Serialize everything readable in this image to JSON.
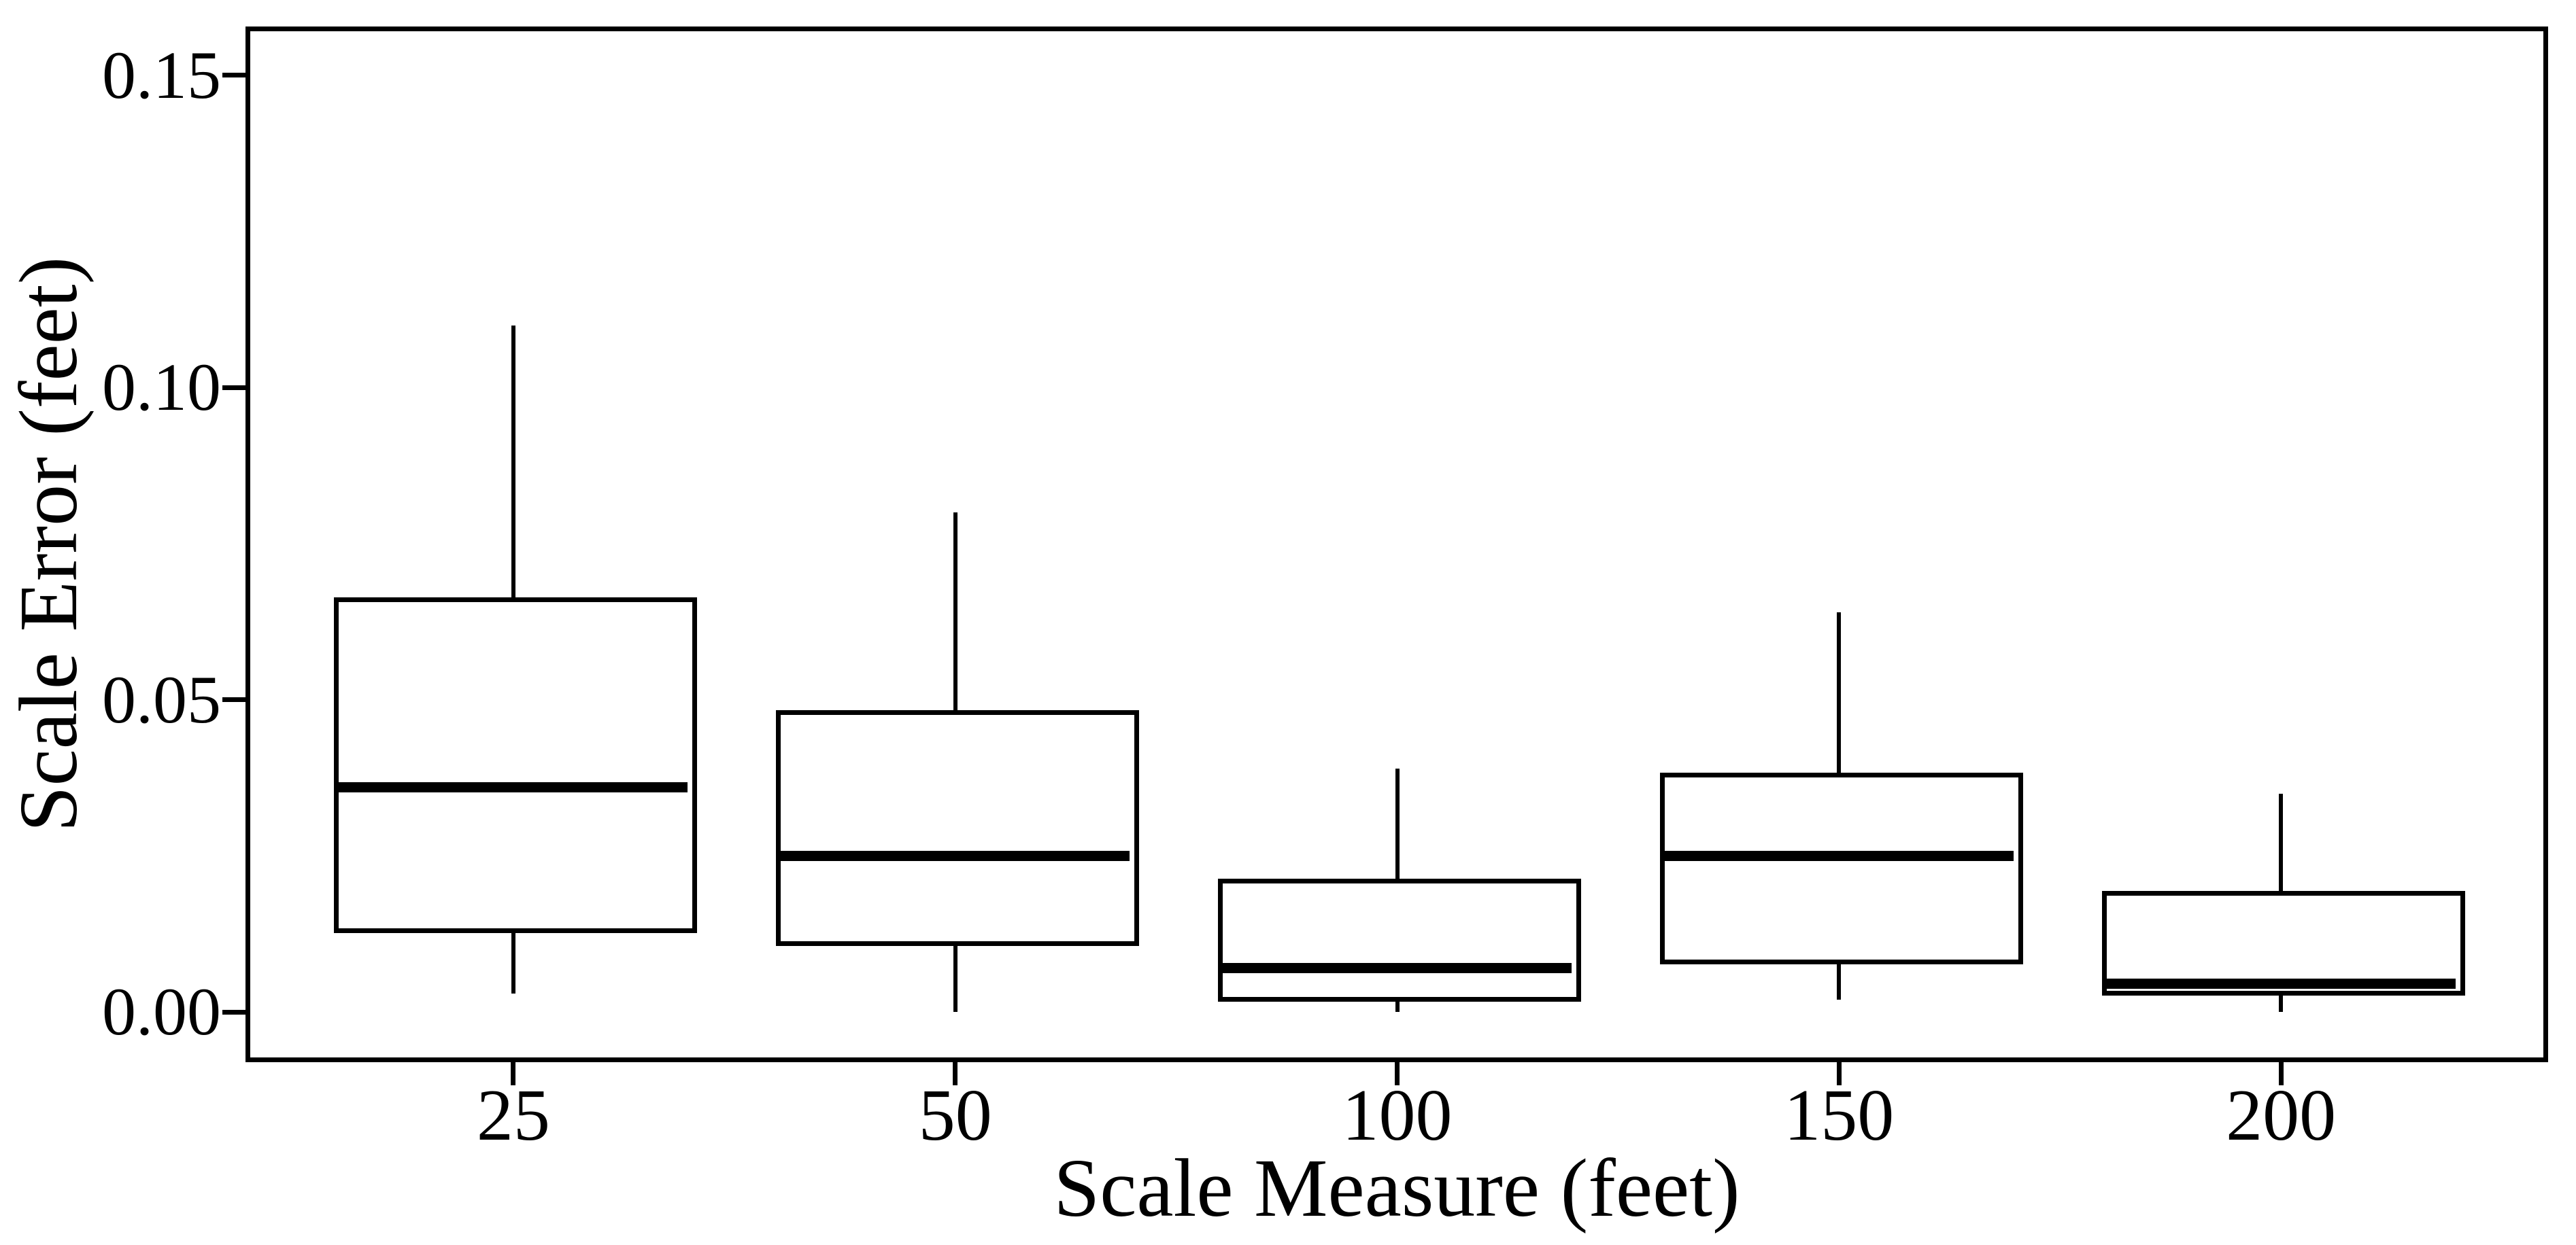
{
  "figure": {
    "background_color": "#ffffff",
    "ink_color": "#000000"
  },
  "y_axis": {
    "title": "Scale Error (feet)",
    "tick_labels": [
      "0.00",
      "0.05",
      "0.10",
      "0.15"
    ],
    "tick_values": [
      0.0,
      0.05,
      0.1,
      0.15
    ]
  },
  "x_axis": {
    "title": "Scale Measure (feet)",
    "tick_labels": [
      "25",
      "50",
      "100",
      "150",
      "200"
    ]
  },
  "chart_data": {
    "type": "boxplot",
    "title": "",
    "xlabel": "Scale Measure (feet)",
    "ylabel": "Scale Error (feet)",
    "categories": [
      "25",
      "50",
      "100",
      "150",
      "200"
    ],
    "ylim": [
      -0.0076,
      0.1574
    ],
    "yticks": [
      0.0,
      0.05,
      0.1,
      0.15
    ],
    "grid": false,
    "legend": false,
    "whisker_caps": false,
    "box_width_fraction": 0.8,
    "boxes": [
      {
        "category": "25",
        "min": 0.003,
        "q1": 0.013,
        "median": 0.036,
        "q3": 0.066,
        "max": 0.11
      },
      {
        "category": "50",
        "min": 0.0,
        "q1": 0.011,
        "median": 0.025,
        "q3": 0.048,
        "max": 0.08
      },
      {
        "category": "100",
        "min": 0.0,
        "q1": 0.002,
        "median": 0.007,
        "q3": 0.021,
        "max": 0.039
      },
      {
        "category": "150",
        "min": 0.002,
        "q1": 0.008,
        "median": 0.025,
        "q3": 0.038,
        "max": 0.064
      },
      {
        "category": "200",
        "min": 0.0,
        "q1": 0.003,
        "median": 0.0045,
        "q3": 0.019,
        "max": 0.035
      }
    ]
  }
}
